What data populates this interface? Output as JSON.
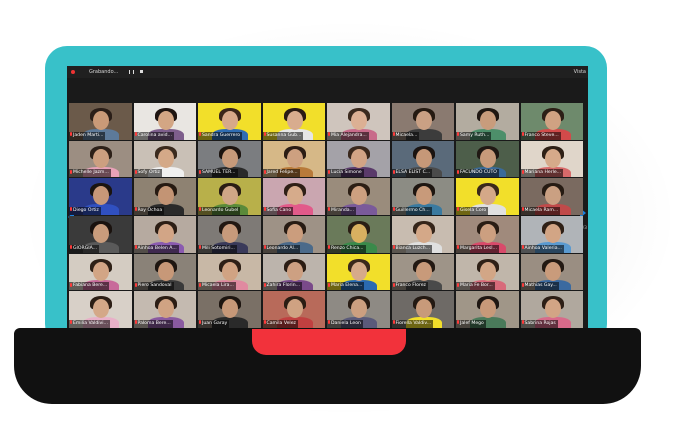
{
  "topbar": {
    "recording_label": "Grabando...",
    "view_label": "Vista"
  },
  "pagination": {
    "indicator": "1/3"
  },
  "participants": [
    {
      "name": "Jaden Marti...",
      "bg": "#6b5a4a",
      "skin": "#c99a78",
      "hair": "#2a1e18",
      "shirt": "#5d7a9a"
    },
    {
      "name": "Carolina avid...",
      "bg": "#e9e6e2",
      "skin": "#d3a684",
      "hair": "#1e1410",
      "shirt": "#7e5e8c"
    },
    {
      "name": "Sandra Guerrero",
      "bg": "#f2df2a",
      "skin": "#d6a98a",
      "hair": "#3a261a",
      "shirt": "#2f6db2",
      "y": true
    },
    {
      "name": "Susanna Gub...",
      "bg": "#f2df2a",
      "skin": "#d8ac8e",
      "hair": "#2a1b14",
      "shirt": "#e6e6e6",
      "y": true
    },
    {
      "name": "Mia Alejandra...",
      "bg": "#cfc5bd",
      "skin": "#dcb094",
      "hair": "#3b2a1e",
      "shirt": "#c86a8a"
    },
    {
      "name": "Micaela...",
      "bg": "#8a7a70",
      "skin": "#caa084",
      "hair": "#251a12",
      "shirt": "#3c3c3c"
    },
    {
      "name": "Samy Ruth...",
      "bg": "#b3aca0",
      "skin": "#c89c7c",
      "hair": "#1f1712",
      "shirt": "#4d8f6a"
    },
    {
      "name": "Franco Steve...",
      "bg": "#6e8a6c",
      "skin": "#d0a282",
      "hair": "#2c1f16",
      "shirt": "#d24a4a"
    },
    {
      "name": "Michelle Jazm...",
      "bg": "#9c8e82",
      "skin": "#cc9f80",
      "hair": "#2d2018",
      "shirt": "#e8a2b8"
    },
    {
      "name": "Sofy Ortiz",
      "bg": "#c9c0b6",
      "skin": "#d4a988",
      "hair": "#3a2a1d",
      "shirt": "#f0f0f0"
    },
    {
      "name": "SAMUEL TER...",
      "bg": "#7b7d80",
      "skin": "#c79a7a",
      "hair": "#1c1410",
      "shirt": "#2a2a2a"
    },
    {
      "name": "Jared Felipe...",
      "bg": "#d6b887",
      "skin": "#cda080",
      "hair": "#2b1d14",
      "shirt": "#b87a3a"
    },
    {
      "name": "Lucia Simone",
      "bg": "#a4a2a8",
      "skin": "#d2a485",
      "hair": "#3a281c",
      "shirt": "#5a3a6a"
    },
    {
      "name": "ELSA ELIST C...",
      "bg": "#5a6a7a",
      "skin": "#c69878",
      "hair": "#1a1310",
      "shirt": "#4a4a4a"
    },
    {
      "name": "FACUNDO CUTO",
      "bg": "#4d5e4a",
      "skin": "#c89a7a",
      "hair": "#201813",
      "shirt": "#3a6a9a"
    },
    {
      "name": "Mariana Herle...",
      "bg": "#e0d6ca",
      "skin": "#d6aa8a",
      "hair": "#2e2016",
      "shirt": "#d86a6a"
    },
    {
      "name": "Diego Ortiz",
      "bg": "#2a3a8a",
      "skin": "#c79878",
      "hair": "#1a1410",
      "shirt": "#3050c0"
    },
    {
      "name": "Roy Ochoa",
      "bg": "#8e8272",
      "skin": "#c39474",
      "hair": "#261a12",
      "shirt": "#2a2a2a"
    },
    {
      "name": "Leonardo Gubel",
      "bg": "#b8b04a",
      "skin": "#d0a686",
      "hair": "#2a1d14",
      "shirt": "#5a8a3a"
    },
    {
      "name": "Sofia Cano",
      "bg": "#caa6b0",
      "skin": "#d6ab8b",
      "hair": "#2e1f16",
      "shirt": "#e25a8a"
    },
    {
      "name": "Miranda...",
      "bg": "#9a8c7c",
      "skin": "#cda080",
      "hair": "#2c1f15",
      "shirt": "#7a5a9a"
    },
    {
      "name": "Guillermo Ch...",
      "bg": "#8c8c84",
      "skin": "#c89a7a",
      "hair": "#1e1611",
      "shirt": "#3a7aa0"
    },
    {
      "name": "Gisela Coro",
      "bg": "#f2df2a",
      "skin": "#d4a888",
      "hair": "#3a281b",
      "shirt": "#e0e0e0",
      "y": true
    },
    {
      "name": "Micaela Ram...",
      "bg": "#7a6a60",
      "skin": "#caa082",
      "hair": "#261b13",
      "shirt": "#c04a4a"
    },
    {
      "name": "GIORGIA...",
      "bg": "#3a3a3a",
      "skin": "#c99c7c",
      "hair": "#1a120e",
      "shirt": "#5a5a5a"
    },
    {
      "name": "Ainhoa Belen A...",
      "bg": "#b6aaa0",
      "skin": "#d2a586",
      "hair": "#2c1e15",
      "shirt": "#8a5ab0"
    },
    {
      "name": "Mili Sotomiri...",
      "bg": "#7e7a76",
      "skin": "#c79a7b",
      "hair": "#221812",
      "shirt": "#3a3a5a"
    },
    {
      "name": "Leonardo Al...",
      "bg": "#9e9286",
      "skin": "#cb9d7d",
      "hair": "#271b13",
      "shirt": "#4a6a8a"
    },
    {
      "name": "Renzo Chica...",
      "bg": "#6a7a5a",
      "skin": "#d8b060",
      "hair": "#2a1e14",
      "shirt": "#3a8a4a"
    },
    {
      "name": "Bianca Luzch...",
      "bg": "#c8bcb0",
      "skin": "#d4a888",
      "hair": "#35251a",
      "shirt": "#e0e0e0"
    },
    {
      "name": "Margarita Lesl...",
      "bg": "#a08a7c",
      "skin": "#cc9f80",
      "hair": "#2a1d14",
      "shirt": "#d84a6a"
    },
    {
      "name": "Ainhoa Valeria...",
      "bg": "#b0b4b8",
      "skin": "#d2a585",
      "hair": "#2e2016",
      "shirt": "#5a9ad0"
    },
    {
      "name": "Fabiana Bere...",
      "bg": "#d4ccc2",
      "skin": "#d2a585",
      "hair": "#2e2016",
      "shirt": "#c86a9a"
    },
    {
      "name": "Piero Sandoval",
      "bg": "#8a8278",
      "skin": "#c79878",
      "hair": "#1e1611",
      "shirt": "#3a3a3a"
    },
    {
      "name": "Micaela Lira...",
      "bg": "#c8b8a6",
      "skin": "#d0a383",
      "hair": "#2d1f16",
      "shirt": "#e08aa0"
    },
    {
      "name": "Zahira Florin...",
      "bg": "#bcb4ac",
      "skin": "#cda082",
      "hair": "#2a1c13",
      "shirt": "#7a4a8a"
    },
    {
      "name": "Maria Elena...",
      "bg": "#f2df2a",
      "skin": "#d6aa8a",
      "hair": "#3a281c",
      "shirt": "#2a6ab0",
      "y": true
    },
    {
      "name": "Franco Florez",
      "bg": "#9e9488",
      "skin": "#c89a7a",
      "hair": "#221812",
      "shirt": "#4a4a4a"
    },
    {
      "name": "Maria Fe Bor...",
      "bg": "#c0b6aa",
      "skin": "#d2a686",
      "hair": "#2e2016",
      "shirt": "#d86a7a"
    },
    {
      "name": "Mathias Gay...",
      "bg": "#9a8e82",
      "skin": "#c99b7b",
      "hair": "#231912",
      "shirt": "#3a6aa0"
    },
    {
      "name": "Emilia Valdivi...",
      "bg": "#d8d0c8",
      "skin": "#d4a888",
      "hair": "#2c1e15",
      "shirt": "#e8b0c8"
    },
    {
      "name": "Paloma Bere...",
      "bg": "#c4bab0",
      "skin": "#d0a383",
      "hair": "#2b1d14",
      "shirt": "#8a5aa0"
    },
    {
      "name": "Juan Garay",
      "bg": "#7a7066",
      "skin": "#c69878",
      "hair": "#1d1510",
      "shirt": "#2a2a2a"
    },
    {
      "name": "Camila Velez",
      "bg": "#b86a5a",
      "skin": "#cfa282",
      "hair": "#2a1c13",
      "shirt": "#c04040"
    },
    {
      "name": "Daniela Leon",
      "bg": "#8e8a84",
      "skin": "#cc9f80",
      "hair": "#281c14",
      "shirt": "#5a5a7a"
    },
    {
      "name": "Fiorella Valdiv...",
      "bg": "#6e6a66",
      "skin": "#c89a7a",
      "hair": "#231912",
      "shirt": "#f2df2a"
    },
    {
      "name": "Jalef Mego",
      "bg": "#a09688",
      "skin": "#c79979",
      "hair": "#1f1712",
      "shirt": "#4a7a5a"
    },
    {
      "name": "Sabrina Rojas",
      "bg": "#b0a89e",
      "skin": "#d2a585",
      "hair": "#2d1f16",
      "shirt": "#d86a8a"
    }
  ]
}
